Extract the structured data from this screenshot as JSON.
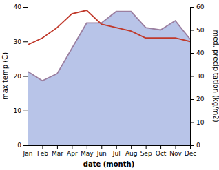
{
  "chart_data": {
    "type": "line",
    "xlabel": "date (month)",
    "ylabel": "max temp (C)",
    "y2label": "med. precipitation (kg/m2)",
    "categories": [
      "Jan",
      "Feb",
      "Mar",
      "Apr",
      "May",
      "Jun",
      "Jul",
      "Aug",
      "Sep",
      "Oct",
      "Nov",
      "Dec"
    ],
    "series": [
      {
        "type": "area",
        "axis": "y2",
        "color": "#b8c4e8",
        "values": [
          32,
          28,
          31,
          42,
          53,
          53,
          58,
          58,
          51,
          50,
          54,
          46
        ]
      },
      {
        "type": "line",
        "axis": "y2",
        "color": "#9b7fa0",
        "values": [
          32,
          28,
          31,
          42,
          53,
          53,
          58,
          58,
          51,
          50,
          54,
          46
        ]
      },
      {
        "type": "line",
        "color": "#c0392b",
        "values": [
          29,
          31,
          34,
          38,
          39,
          35,
          34,
          33,
          31,
          31,
          31,
          30
        ]
      }
    ],
    "ylim": [
      0,
      40
    ],
    "yticks": [
      0,
      10,
      20,
      30,
      40
    ],
    "y2lim": [
      0,
      60
    ],
    "y2ticks": [
      0,
      10,
      20,
      30,
      40,
      50,
      60
    ],
    "grid": false
  }
}
